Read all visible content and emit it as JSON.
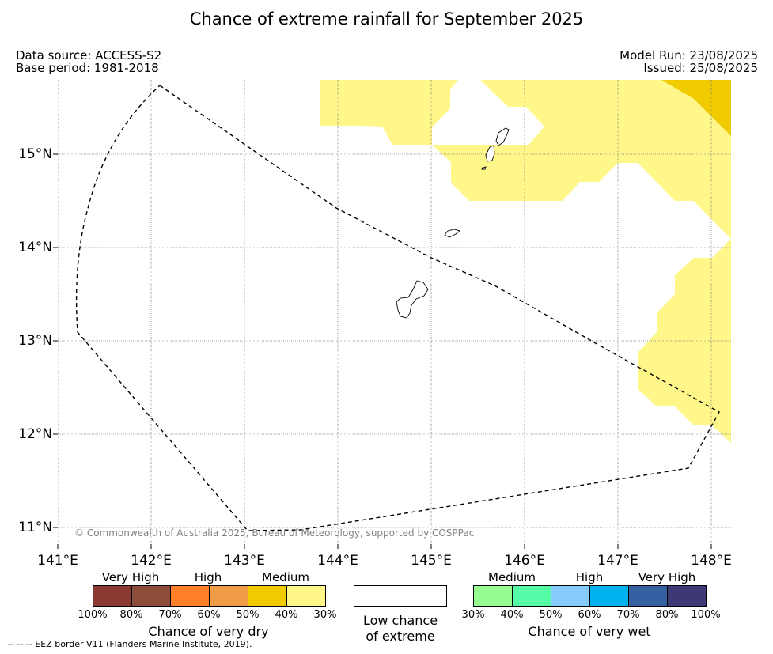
{
  "title": "Chance of extreme rainfall for September 2025",
  "header_left": {
    "line1": "Data source: ACCESS-S2",
    "line2": "Base period: 1981-2018"
  },
  "header_right": {
    "line1": "Model Run: 23/08/2025",
    "line2": "Issued: 25/08/2025"
  },
  "copyright": "© Commonwealth of Australia 2025, Bureau of Meteorology, supported by COSPPac",
  "footnote": "--  --  -- EEZ border V11 (Flanders Marine Institute, 2019).",
  "map": {
    "lon_range": [
      141,
      148.2
    ],
    "lat_range": [
      10.8,
      15.8
    ],
    "x_ticks": [
      "141°E",
      "142°E",
      "143°E",
      "144°E",
      "145°E",
      "146°E",
      "147°E",
      "148°E"
    ],
    "y_ticks": [
      "11°N",
      "12°N",
      "13°N",
      "14°N",
      "15°N"
    ],
    "grid": true,
    "colors": {
      "medium_dry": "#fff78a",
      "high_medium_dry": "#f0cb00"
    }
  },
  "legend": {
    "dry": {
      "categories": [
        "Very High",
        "High",
        "Medium"
      ],
      "colors": [
        "#8b3a32",
        "#8e4c3a",
        "#ff8026",
        "#ef9b47",
        "#f0cb00",
        "#fff78a"
      ],
      "ticks": [
        "100%",
        "80%",
        "70%",
        "60%",
        "50%",
        "40%",
        "30%"
      ],
      "name": "Chance of very dry"
    },
    "low": {
      "line1": "Low chance",
      "line2": "of extreme"
    },
    "wet": {
      "categories": [
        "Medium",
        "High",
        "Very High"
      ],
      "colors": [
        "#97fb93",
        "#55fba6",
        "#85ccfb",
        "#00b3f0",
        "#355fa0",
        "#3d3876"
      ],
      "ticks": [
        "30%",
        "40%",
        "50%",
        "60%",
        "70%",
        "80%",
        "100%"
      ],
      "name": "Chance of very wet"
    }
  }
}
